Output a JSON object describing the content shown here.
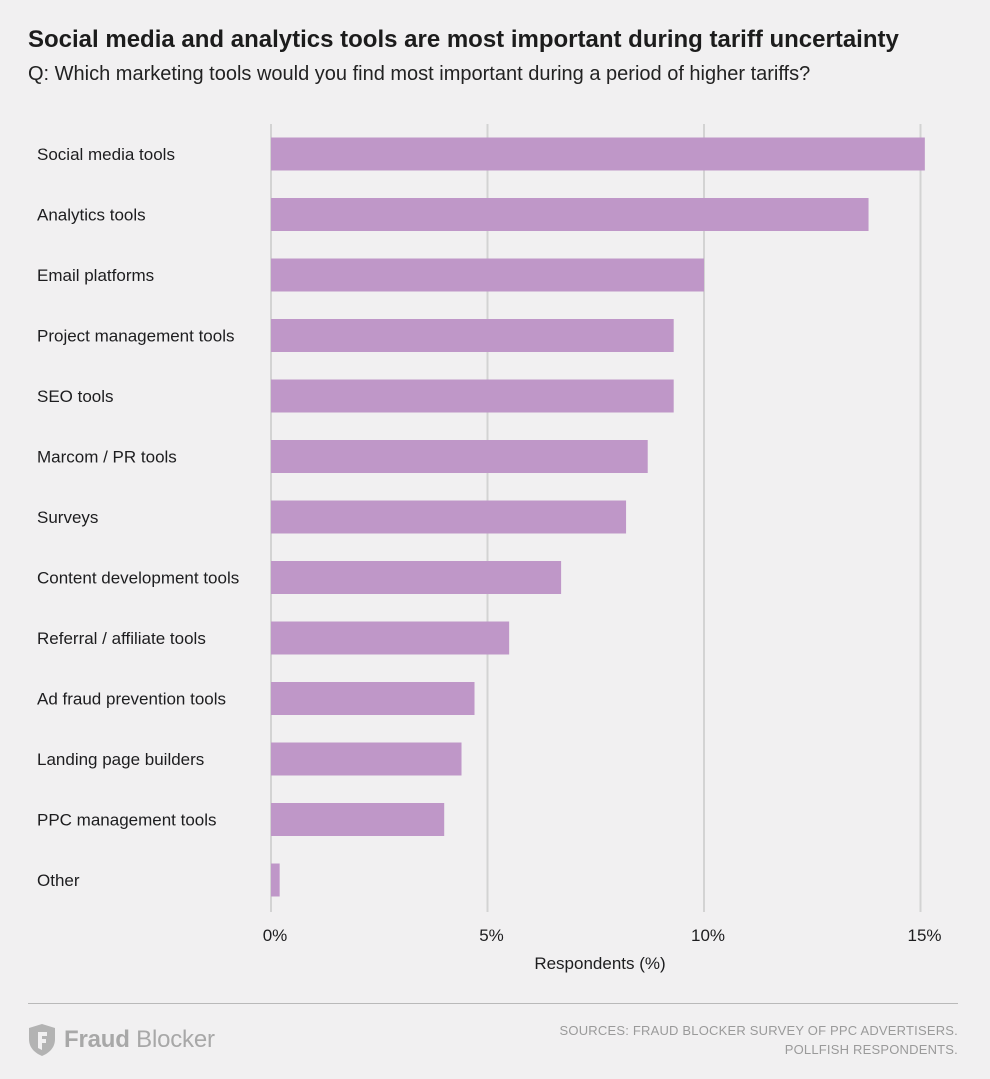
{
  "header": {
    "title": "Social media and analytics tools are most important during tariff uncertainty",
    "subtitle": "Q: Which marketing tools would you find most important during a period of higher tariffs?"
  },
  "chart_data": {
    "type": "bar",
    "orientation": "horizontal",
    "title": "Social media and analytics tools are most important during tariff uncertainty",
    "subtitle": "Q: Which marketing tools would you find most important during a period of higher tariffs?",
    "categories": [
      "Social media tools",
      "Analytics tools",
      "Email platforms",
      "Project management tools",
      "SEO tools",
      "Marcom / PR tools",
      "Surveys",
      "Content development tools",
      "Referral / affiliate tools",
      "Ad fraud prevention tools",
      "Landing page builders",
      "PPC management tools",
      "Other"
    ],
    "values": [
      15.1,
      13.8,
      10.0,
      9.3,
      9.3,
      8.7,
      8.2,
      6.7,
      5.5,
      4.7,
      4.4,
      4.0,
      0.2
    ],
    "xlabel": "Respondents (%)",
    "ylabel": "",
    "xlim": [
      0,
      15.5
    ],
    "xticks": [
      0,
      5,
      10,
      15
    ],
    "xtick_labels": [
      "0%",
      "5%",
      "10%",
      "15%"
    ],
    "grid": true,
    "legend": "none",
    "bar_color": "#bf97c8",
    "grid_color": "#d3d3d3"
  },
  "footer": {
    "logo": {
      "icon": "fraud-blocker-shield-icon",
      "brand_part1": "Fraud",
      "brand_part2": "Blocker"
    },
    "sources_line1": "SOURCES: FRAUD BLOCKER SURVEY OF PPC ADVERTISERS.",
    "sources_line2": "POLLFISH RESPONDENTS."
  }
}
